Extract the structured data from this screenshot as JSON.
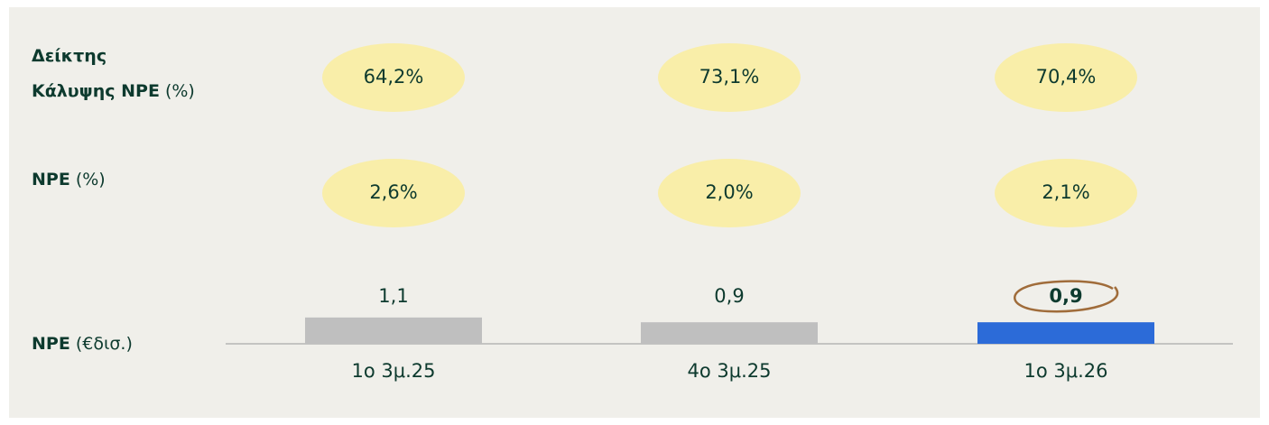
{
  "chart_data": {
    "type": "bar",
    "categories": [
      "1ο 3μ.25",
      "4ο 3μ.25",
      "1ο 3μ.26"
    ],
    "values": [
      1.1,
      0.9,
      0.9
    ],
    "value_labels": [
      "1,1",
      "0,9",
      "0,9"
    ],
    "colors": [
      "#bfbfbf",
      "#bfbfbf",
      "#2c6bd8"
    ],
    "label": {
      "name": "NPE",
      "unit": "(€δισ.)"
    },
    "highlight": 2
  },
  "metrics": [
    {
      "name_lines": [
        "Δείκτης",
        "Κάλυψης NPE"
      ],
      "unit": "(%)",
      "values": [
        64.2,
        73.1,
        70.4
      ],
      "value_labels": [
        "64,2%",
        "73,1%",
        "70,4%"
      ]
    },
    {
      "name_lines": [
        "NPE"
      ],
      "unit": "(%)",
      "values": [
        2.6,
        2.0,
        2.1
      ],
      "value_labels": [
        "2,6%",
        "2,0%",
        "2,1%"
      ]
    }
  ]
}
